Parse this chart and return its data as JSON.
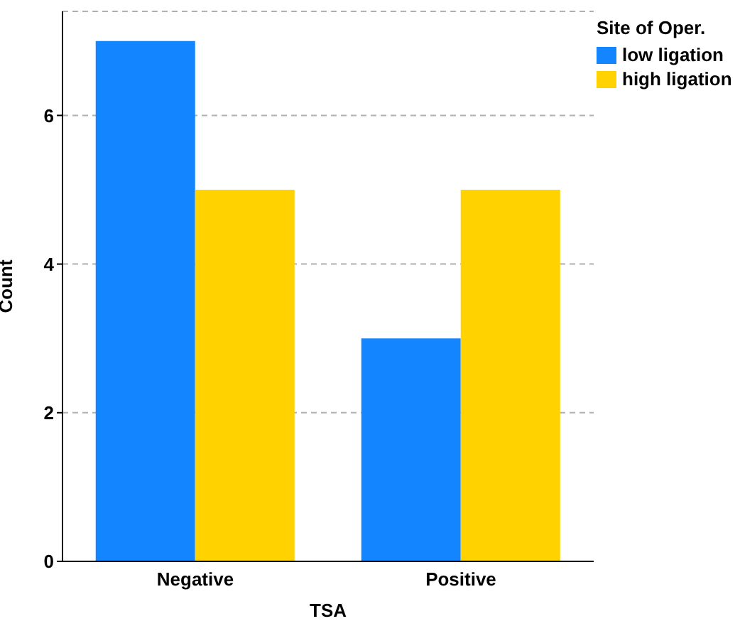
{
  "chart_data": {
    "type": "bar",
    "xlabel": "TSA",
    "ylabel": "Count",
    "legend_title": "Site of Oper.",
    "categories": [
      "Negative",
      "Positive"
    ],
    "series": [
      {
        "name": "low ligation",
        "color": "#1385ff",
        "values": [
          7,
          3
        ]
      },
      {
        "name": "high ligation",
        "color": "#ffd200",
        "values": [
          5,
          5
        ]
      }
    ],
    "ylim": [
      0,
      7.4
    ],
    "yticks": [
      0,
      2,
      4,
      6
    ],
    "grid": "y",
    "legend": "top right"
  }
}
